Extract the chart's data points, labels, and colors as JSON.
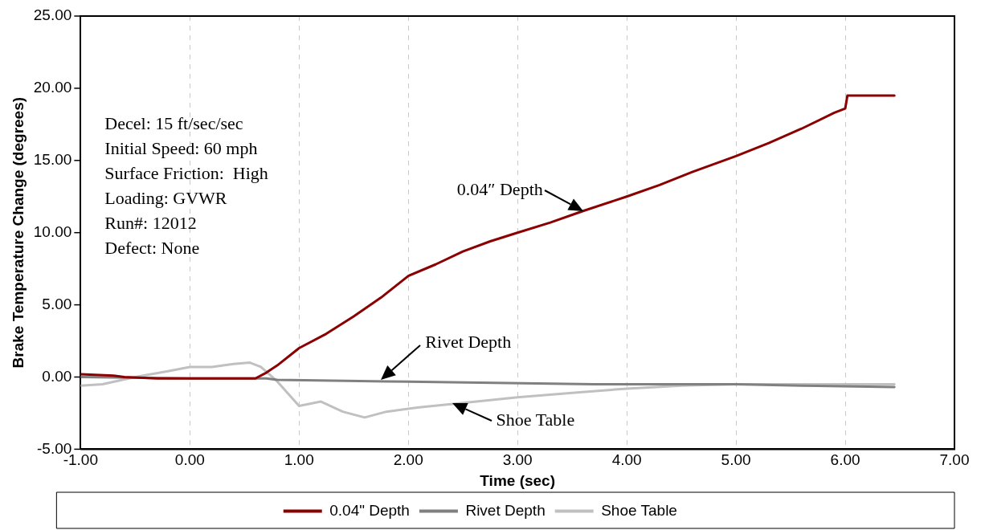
{
  "chart_data": {
    "type": "line",
    "xlabel": "Time (sec)",
    "ylabel": "Brake Temperature Change (degrees)",
    "xlim": [
      -1,
      7
    ],
    "xticks": [
      {
        "value": -1,
        "label": "-1.00"
      },
      {
        "value": 0,
        "label": "0.00"
      },
      {
        "value": 1,
        "label": "1.00"
      },
      {
        "value": 2,
        "label": "2.00"
      },
      {
        "value": 3,
        "label": "3.00"
      },
      {
        "value": 4,
        "label": "4.00"
      },
      {
        "value": 5,
        "label": "5.00"
      },
      {
        "value": 6,
        "label": "6.00"
      },
      {
        "value": 7,
        "label": "7.00"
      }
    ],
    "ylim": [
      -5,
      25
    ],
    "yticks": [
      {
        "value": -5,
        "label": "-5.00"
      },
      {
        "value": 0,
        "label": "0.00"
      },
      {
        "value": 5,
        "label": "5.00"
      },
      {
        "value": 10,
        "label": "10.00"
      },
      {
        "value": 15,
        "label": "15.00"
      },
      {
        "value": 20,
        "label": "20.00"
      },
      {
        "value": 25,
        "label": "25.00"
      }
    ],
    "grid": "x",
    "legend": "bottom",
    "marker": "none",
    "line_style": "solid",
    "series": [
      {
        "name": "0.04\" Depth",
        "color": "#8b0000",
        "x": [
          -1,
          -0.7,
          -0.6,
          -0.3,
          0.6,
          0.7,
          0.8,
          1,
          1.25,
          1.5,
          1.75,
          2,
          2.25,
          2.5,
          2.75,
          3,
          3.3,
          3.6,
          4,
          4.3,
          4.6,
          5,
          5.3,
          5.6,
          5.9,
          6,
          6.02,
          6.45
        ],
        "values": [
          0.2,
          0.1,
          0,
          -0.1,
          -0.1,
          0.3,
          0.8,
          2.0,
          3.0,
          4.2,
          5.5,
          7.0,
          7.8,
          8.7,
          9.4,
          10.0,
          10.7,
          11.5,
          12.5,
          13.3,
          14.2,
          15.3,
          16.2,
          17.2,
          18.3,
          18.6,
          19.5,
          19.5
        ]
      },
      {
        "name": "Rivet Depth",
        "color": "#808080",
        "x": [
          -1,
          0,
          0.7,
          0.8,
          1.8,
          3.7,
          5,
          5.6,
          6.45
        ],
        "values": [
          0,
          -0.1,
          -0.1,
          -0.2,
          -0.3,
          -0.5,
          -0.5,
          -0.6,
          -0.7
        ]
      },
      {
        "name": "Shoe Table",
        "color": "#c0c0c0",
        "x": [
          -1,
          -0.8,
          -0.5,
          -0.2,
          0,
          0.2,
          0.4,
          0.55,
          0.65,
          0.8,
          1,
          1.2,
          1.4,
          1.6,
          1.8,
          2.1,
          2.5,
          3,
          3.5,
          4,
          4.5,
          5,
          6.45
        ],
        "values": [
          -0.6,
          -0.5,
          0,
          0.4,
          0.7,
          0.7,
          0.9,
          1.0,
          0.7,
          -0.3,
          -2.0,
          -1.7,
          -2.4,
          -2.8,
          -2.4,
          -2.1,
          -1.8,
          -1.4,
          -1.1,
          -0.8,
          -0.6,
          -0.5,
          -0.5
        ]
      }
    ],
    "annotations": [
      "Decel: 15 ft/sec/sec",
      "Initial Speed: 60 mph",
      "Surface Friction:  High",
      "Loading: GVWR",
      "Run#: 12012",
      "Defect: None",
      {
        "text": "0.04″ Depth",
        "x": 3.6,
        "y": 11.5
      },
      {
        "text": "Rivet Depth",
        "x": 1.75,
        "y": -0.2
      },
      {
        "text": "Shoe Table",
        "x": 2.4,
        "y": -1.8
      }
    ]
  }
}
